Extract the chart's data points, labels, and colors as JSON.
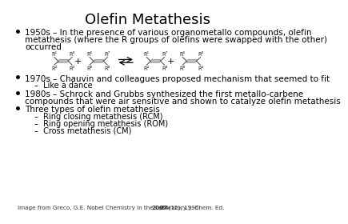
{
  "title": "Olefin Metathesis",
  "title_fontsize": 13,
  "bg_color": "#ffffff",
  "text_color": "#000000",
  "bullet1_line1": "1950s – In the presence of various organometallo compounds, olefin",
  "bullet1_line2": "metathesis (where the R groups of olefins were swapped with the other)",
  "bullet1_line3": "occurred",
  "bullet2_text": "1970s – Chauvin and colleagues proposed mechanism that seemed to fit",
  "sub2_text": "–  Like a dance",
  "bullet3_line1": "1980s – Schrock and Grubbs synthesized the first metallo-carbene",
  "bullet3_line2": "compounds that were air sensitive and shown to catalyze olefin metathesis",
  "bullet4_text": "Three types of olefin metathesis",
  "sub4a_text": "–  Ring closing metathesis (RCM)",
  "sub4b_text": "–  Ring opening metathesis (ROM)",
  "sub4c_text": "–  Cross metathesis (CM)",
  "footnote_normal": "Image from Greco, G.E. Nobel Chemistry in the Laboratory. J. Chem. Ed. ",
  "footnote_bold": "2007",
  "footnote_normal2": ",84(12), 1996",
  "body_fontsize": 7.5,
  "sub_fontsize": 7.0,
  "footnote_fontsize": 5.2,
  "mol_label_fontsize": 4.8,
  "arrow_color": "#333333",
  "bond_fill_color": "#c0c0c0",
  "bond_edge_color": "#888888",
  "arm_color": "#444444"
}
